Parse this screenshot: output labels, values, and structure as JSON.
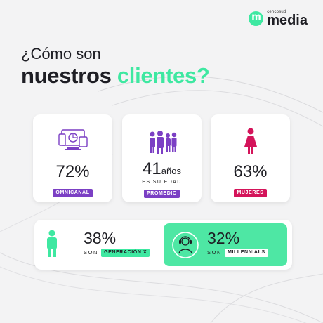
{
  "logo": {
    "small": "cencosud",
    "big": "media",
    "color": "#3ee8a1"
  },
  "heading": {
    "line1": "¿Cómo son",
    "word_dark": "nuestros",
    "word_accent": "clientes?"
  },
  "stats": [
    {
      "value": "72%",
      "unit": "",
      "sub": "",
      "pill": "OMNICANAL",
      "pill_color": "#7b3fc4",
      "icon": "devices-icon"
    },
    {
      "value": "41",
      "unit": "años",
      "sub": "ES SU EDAD",
      "pill": "PROMEDIO",
      "pill_color": "#7b3fc4",
      "icon": "family-icon"
    },
    {
      "value": "63%",
      "unit": "",
      "sub": "",
      "pill": "MUJERES",
      "pill_color": "#d4145a",
      "icon": "woman-icon"
    }
  ],
  "generations": [
    {
      "value": "38%",
      "prefix": "SON",
      "pill": "GENERACIÓN X",
      "icon": "person-icon"
    },
    {
      "value": "32%",
      "prefix": "SON",
      "pill": "MILLENNIALS",
      "icon": "headphones-person-icon"
    }
  ],
  "colors": {
    "purple": "#7b3fc4",
    "magenta": "#d4145a",
    "green": "#3ee8a1",
    "background": "#f3f3f4"
  }
}
